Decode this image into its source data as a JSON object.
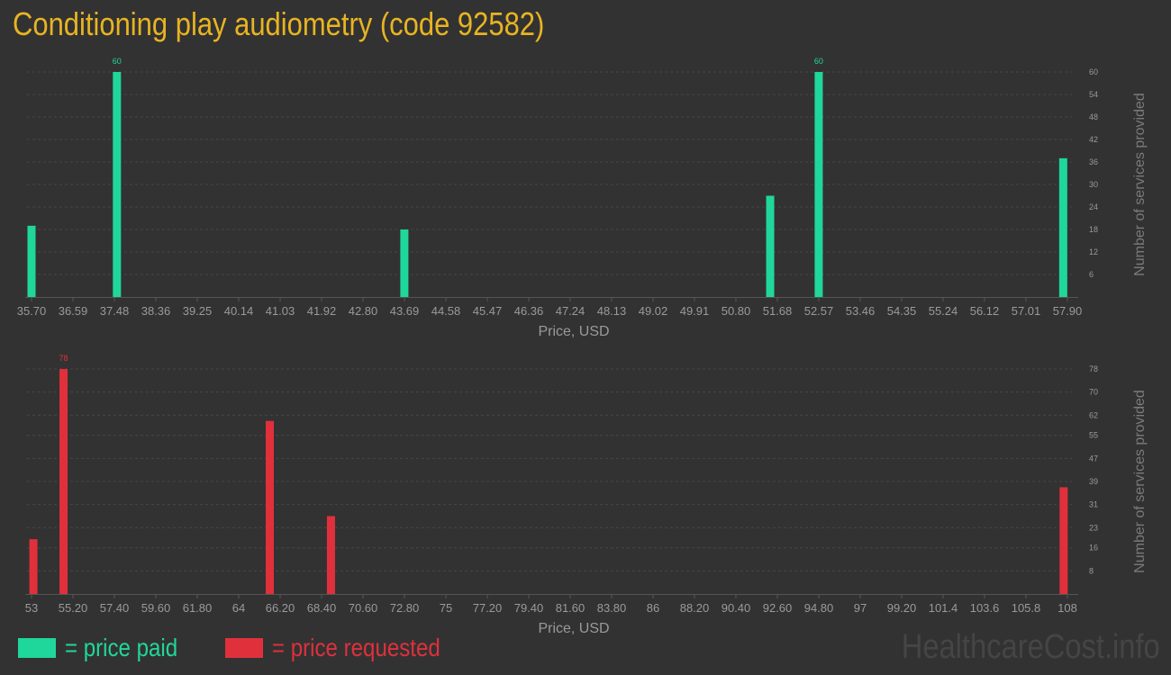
{
  "title": "Conditioning play audiometry (code 92582)",
  "colors": {
    "paid": "#20d79b",
    "requested": "#e0303c",
    "title": "#e8b422"
  },
  "legend": {
    "paid": "= price paid",
    "requested": "= price requested"
  },
  "watermark": "HealthcareCost.info",
  "chart_data": [
    {
      "type": "bar",
      "name": "paid",
      "xlabel": "Price, USD",
      "ylabel": "Number of services provided",
      "x_ticks": [
        "35.70",
        "36.59",
        "37.48",
        "38.36",
        "39.25",
        "40.14",
        "41.03",
        "41.92",
        "42.80",
        "43.69",
        "44.58",
        "45.47",
        "46.36",
        "47.24",
        "48.13",
        "49.02",
        "49.91",
        "50.80",
        "51.68",
        "52.57",
        "53.46",
        "54.35",
        "55.24",
        "56.12",
        "57.01",
        "57.90"
      ],
      "x_range": [
        35.7,
        57.9
      ],
      "y_ticks": [
        6,
        12,
        18,
        24,
        30,
        36,
        42,
        48,
        54,
        60
      ],
      "ylim": [
        0,
        60
      ],
      "grid": true,
      "bars": [
        {
          "x": 35.7,
          "y": 19
        },
        {
          "x": 37.53,
          "y": 60,
          "label": "60"
        },
        {
          "x": 43.69,
          "y": 18
        },
        {
          "x": 51.53,
          "y": 27
        },
        {
          "x": 52.57,
          "y": 60,
          "label": "60"
        },
        {
          "x": 57.81,
          "y": 37
        }
      ]
    },
    {
      "type": "bar",
      "name": "requested",
      "xlabel": "Price, USD",
      "ylabel": "Number of services provided",
      "x_ticks": [
        {
          "label": "53",
          "x": 53
        },
        {
          "label": "55.20",
          "x": 55.2
        },
        {
          "label": "57.40",
          "x": 57.4
        },
        {
          "label": "59.60",
          "x": 59.6
        },
        {
          "label": "61.80",
          "x": 61.8
        },
        {
          "label": "64",
          "x": 64
        },
        {
          "label": "66.20",
          "x": 66.2
        },
        {
          "label": "68.40",
          "x": 68.4
        },
        {
          "label": "70.60",
          "x": 70.6
        },
        {
          "label": "72.80",
          "x": 72.8
        },
        {
          "label": "75",
          "x": 75
        },
        {
          "label": "77.20",
          "x": 77.2
        },
        {
          "label": "79.40",
          "x": 79.4
        },
        {
          "label": "81.60",
          "x": 81.6
        },
        {
          "label": "83.80",
          "x": 83.8
        },
        {
          "label": "86",
          "x": 86
        },
        {
          "label": "88.20",
          "x": 88.2
        },
        {
          "label": "90.40",
          "x": 90.4
        },
        {
          "label": "92.60",
          "x": 92.6
        },
        {
          "label": "94.80",
          "x": 94.8
        },
        {
          "label": "97",
          "x": 97
        },
        {
          "label": "99.20",
          "x": 99.2
        },
        {
          "label": "101.4",
          "x": 101.4
        },
        {
          "label": "103.6",
          "x": 103.6
        },
        {
          "label": "105.8",
          "x": 105.8
        },
        {
          "label": "108",
          "x": 108
        }
      ],
      "x_range": [
        53,
        108
      ],
      "y_ticks": [
        8,
        16,
        23,
        31,
        39,
        47,
        55,
        62,
        70,
        78
      ],
      "ylim": [
        0,
        78
      ],
      "grid": true,
      "bars": [
        {
          "x": 53.1,
          "y": 19
        },
        {
          "x": 54.7,
          "y": 78,
          "label": "78"
        },
        {
          "x": 65.65,
          "y": 60
        },
        {
          "x": 68.9,
          "y": 27
        },
        {
          "x": 107.8,
          "y": 37
        }
      ]
    }
  ]
}
